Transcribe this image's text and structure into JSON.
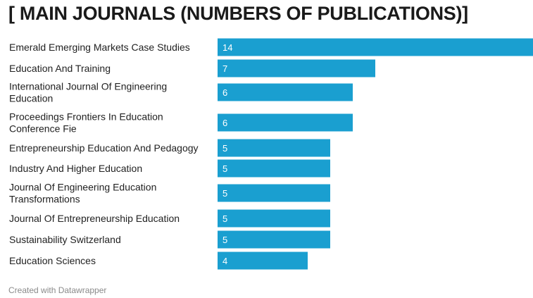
{
  "chart_data": {
    "type": "bar",
    "orientation": "horizontal",
    "title": "[ MAIN JOURNALS (NUMBERS OF PUBLICATIONS)]",
    "categories": [
      [
        "Emerald Emerging Markets Case Studies"
      ],
      [
        "Education And Training"
      ],
      [
        "International Journal Of Engineering",
        "Education"
      ],
      [
        "Proceedings Frontiers In Education",
        "Conference Fie"
      ],
      [
        "Entrepreneurship Education And Pedagogy"
      ],
      [
        "Industry And Higher Education"
      ],
      [
        "Journal Of Engineering Education",
        "Transformations"
      ],
      [
        "Journal Of Entrepreneurship Education"
      ],
      [
        "Sustainability Switzerland"
      ],
      [
        "Education Sciences"
      ]
    ],
    "values": [
      14,
      7,
      6,
      6,
      5,
      5,
      5,
      5,
      5,
      4
    ],
    "xlim": [
      0,
      14
    ],
    "bar_color": "#1a9fd0",
    "value_label_color": "#ffffff",
    "grid": false,
    "legend": "none"
  },
  "footer": {
    "credit": "Created with Datawrapper"
  }
}
